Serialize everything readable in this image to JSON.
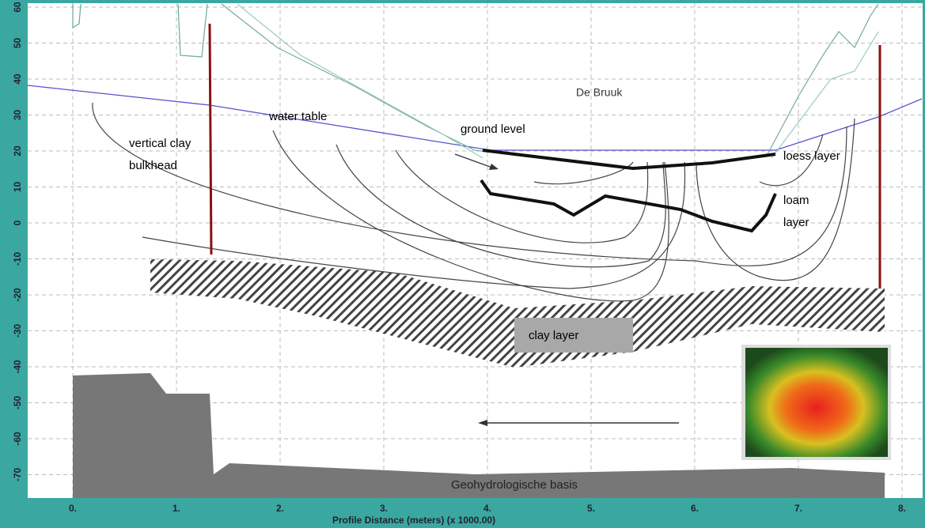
{
  "labels": {
    "place": "De Bruuk",
    "water_table": "water table",
    "ground_level": "ground level",
    "bulkhead": [
      "vertical clay",
      "bulkhead"
    ],
    "loess": "loess layer",
    "loam": [
      "loam",
      "layer"
    ],
    "clay": "clay layer",
    "base": "Geohydrologische basis"
  },
  "axes": {
    "x_title": "Profile Distance (meters) (x 1000.00)",
    "x_ticks": [
      "0.",
      "1.",
      "2.",
      "3.",
      "4.",
      "5.",
      "6.",
      "7.",
      "8."
    ],
    "y_ticks": [
      "60",
      "50",
      "40",
      "30",
      "20",
      "10",
      "0",
      "-10",
      "-20",
      "-30",
      "-40",
      "-50",
      "-60",
      "-70"
    ]
  }
}
